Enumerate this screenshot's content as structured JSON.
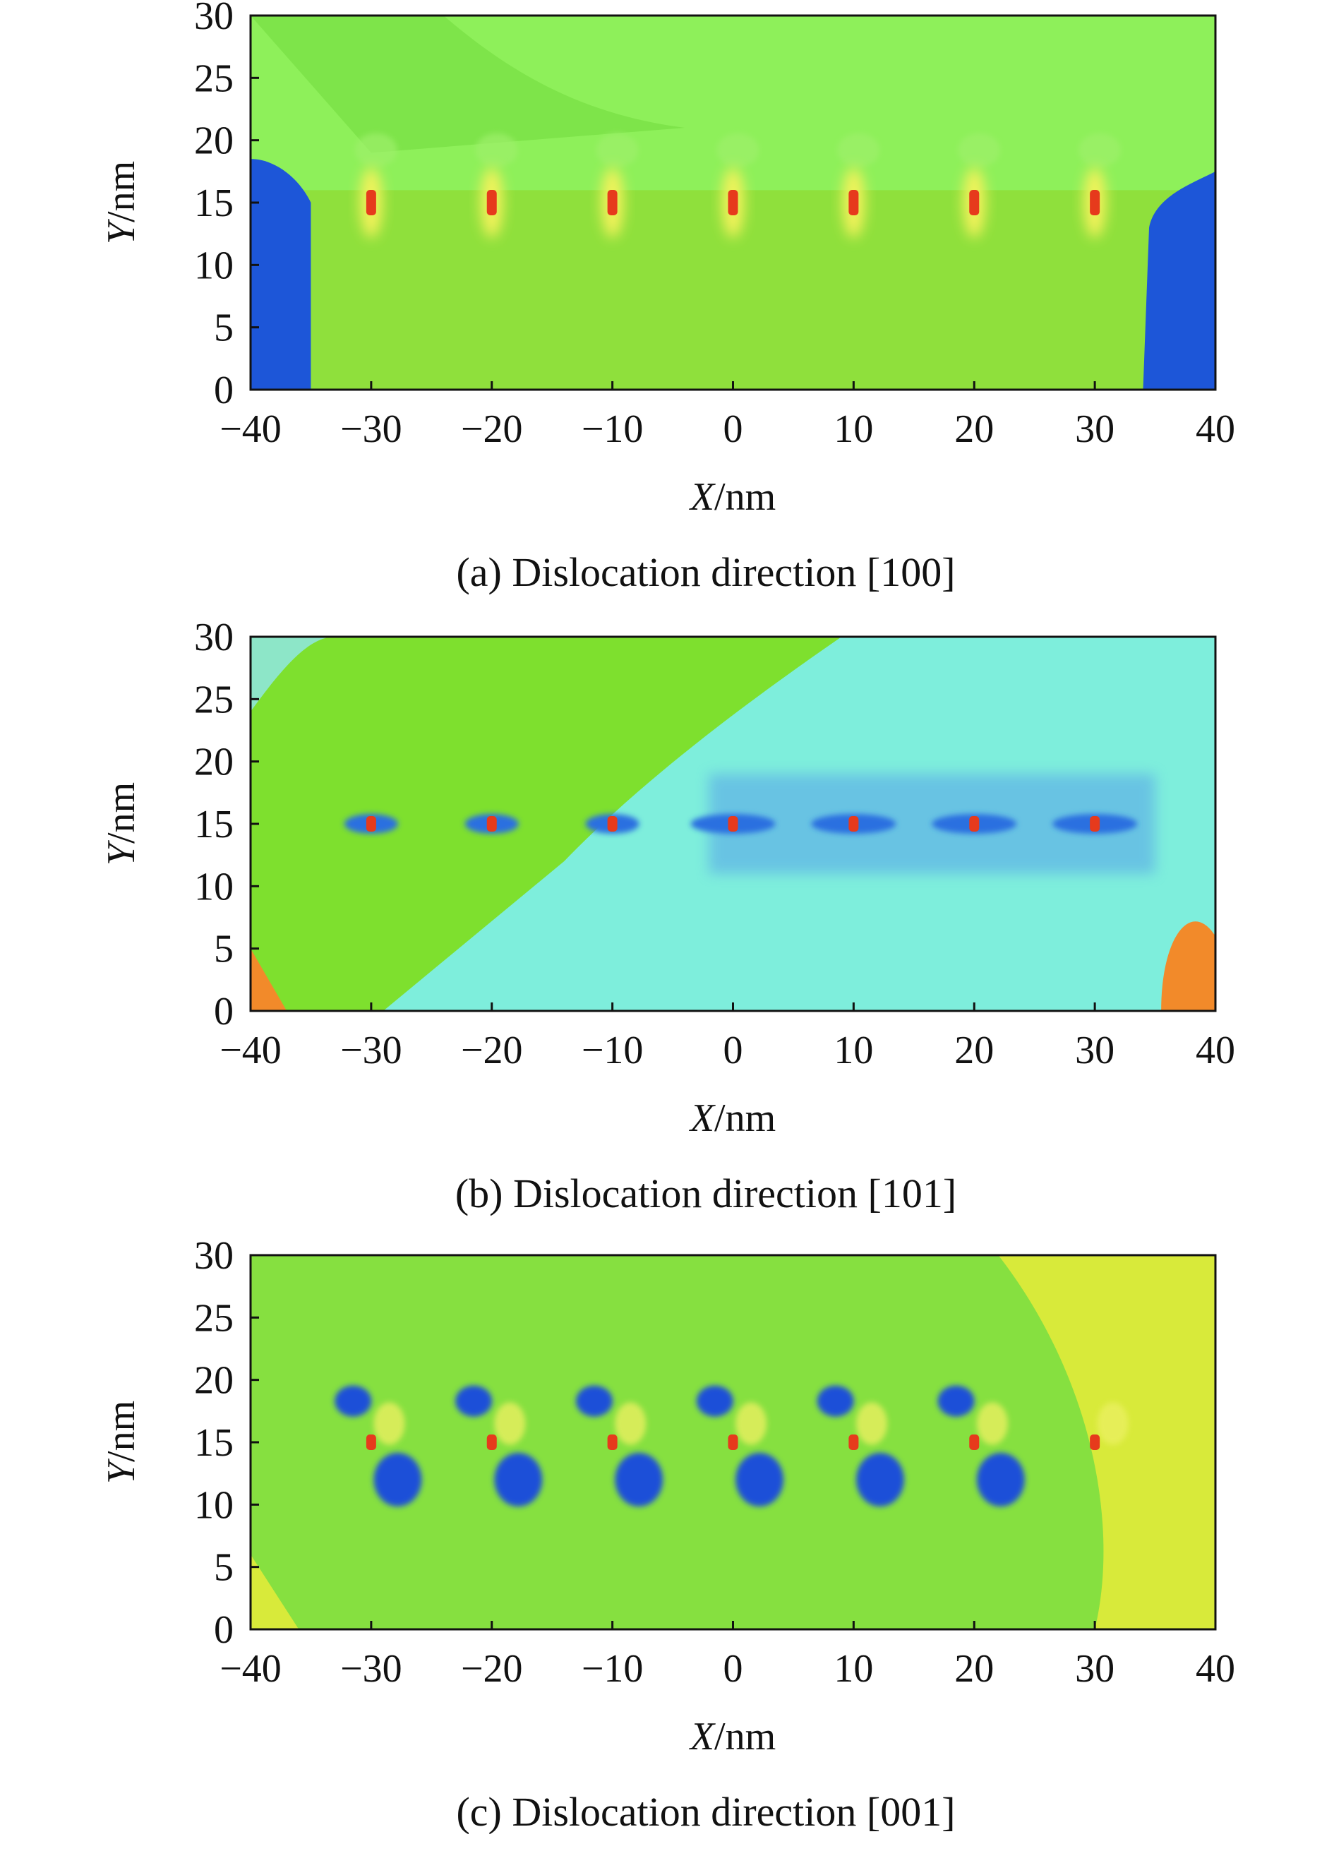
{
  "chart_data": [
    {
      "type": "heatmap",
      "caption": "(a) Dislocation direction [100]",
      "xlabel_var": "X",
      "xlabel_unit": "/nm",
      "ylabel_var": "Y",
      "ylabel_unit": "/nm",
      "xlim": [
        -40,
        40
      ],
      "ylim": [
        0,
        30
      ],
      "xticks": [
        "−40",
        "−30",
        "−20",
        "−10",
        "0",
        "10",
        "20",
        "30",
        "40"
      ],
      "yticks": [
        "0",
        "5",
        "10",
        "15",
        "20",
        "25",
        "30"
      ],
      "dislocations_x": [
        -30,
        -20,
        -10,
        0,
        10,
        20,
        30
      ],
      "dislocations_y": 15,
      "colors": {
        "background": "#86e04a",
        "upper": "#8ef05a",
        "lower": "#8fe03c",
        "corner": "#1d56d8",
        "core": "#e63a1c",
        "halo": "#f2f25a"
      }
    },
    {
      "type": "heatmap",
      "caption": "(b) Dislocation direction [101]",
      "xlabel_var": "X",
      "xlabel_unit": "/nm",
      "ylabel_var": "Y",
      "ylabel_unit": "/nm",
      "xlim": [
        -40,
        40
      ],
      "ylim": [
        0,
        30
      ],
      "xticks": [
        "−40",
        "−30",
        "−20",
        "−10",
        "0",
        "10",
        "20",
        "30",
        "40"
      ],
      "yticks": [
        "0",
        "5",
        "10",
        "15",
        "20",
        "25",
        "30"
      ],
      "dislocations_x": [
        -30,
        -20,
        -10,
        0,
        10,
        20,
        30
      ],
      "dislocations_y": 15,
      "colors": {
        "green": "#7ee02e",
        "cyan": "#7eeedc",
        "blue": "#2a6fe0",
        "core": "#e63a1c",
        "orange": "#f28a2a"
      }
    },
    {
      "type": "heatmap",
      "caption": "(c) Dislocation direction [001]",
      "xlabel_var": "X",
      "xlabel_unit": "/nm",
      "ylabel_var": "Y",
      "ylabel_unit": "/nm",
      "xlim": [
        -40,
        40
      ],
      "ylim": [
        0,
        30
      ],
      "xticks": [
        "−40",
        "−30",
        "−20",
        "−10",
        "0",
        "10",
        "20",
        "30",
        "40"
      ],
      "yticks": [
        "0",
        "5",
        "10",
        "15",
        "20",
        "25",
        "30"
      ],
      "dislocations_x": [
        -30,
        -20,
        -10,
        0,
        10,
        20,
        30
      ],
      "dislocations_y": 15,
      "colors": {
        "background": "#86e040",
        "yellow": "#d8ea3a",
        "blue": "#1a4fd8",
        "core": "#e63a1c"
      }
    }
  ]
}
